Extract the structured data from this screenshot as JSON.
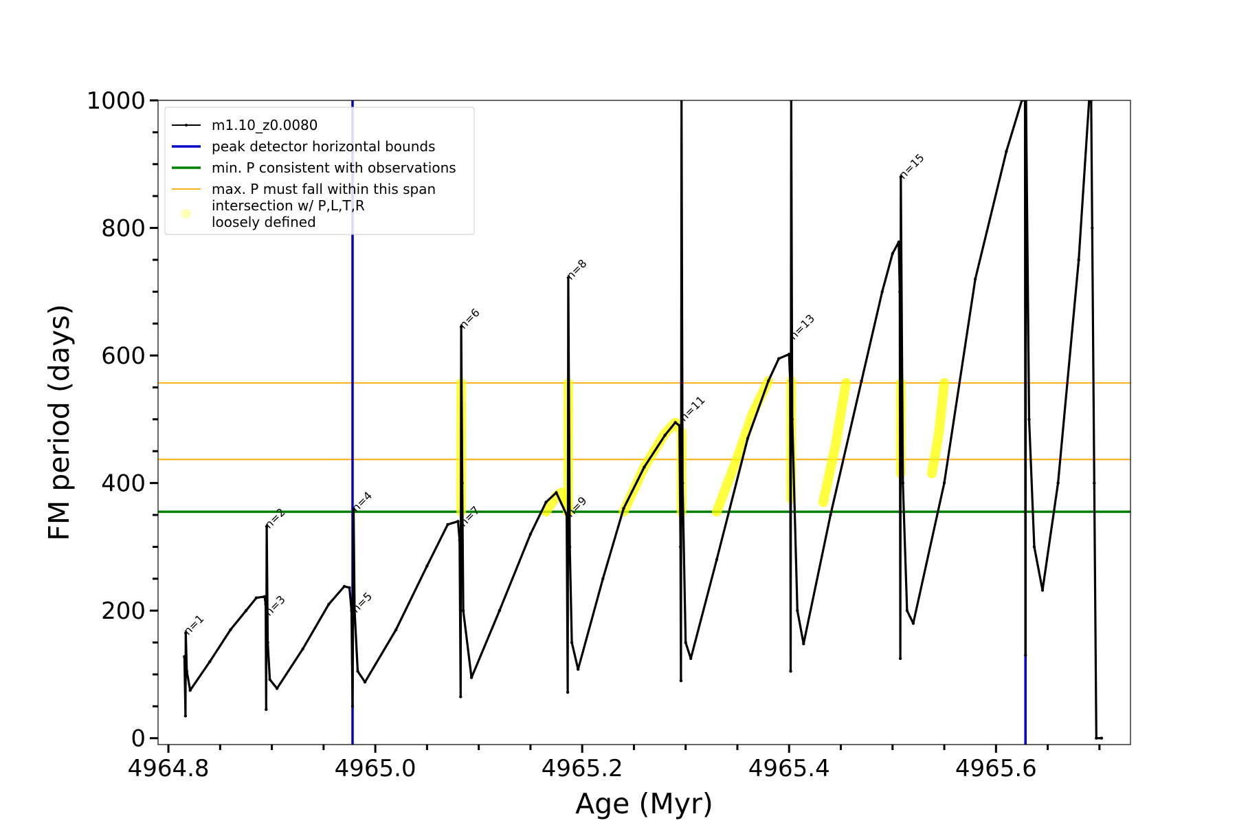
{
  "chart_data": {
    "type": "line",
    "xlabel": "Age (Myr)",
    "ylabel": "FM period (days)",
    "xlim": [
      4964.79,
      4965.73
    ],
    "ylim": [
      -10,
      1000
    ],
    "x_ticks": [
      4964.8,
      4965.0,
      4965.2,
      4965.4,
      4965.6
    ],
    "x_tick_labels": [
      "4964.8",
      "4965.0",
      "4965.2",
      "4965.4",
      "4965.6"
    ],
    "x_minor_step": 0.05,
    "y_ticks": [
      0,
      200,
      400,
      600,
      800,
      1000
    ],
    "y_tick_labels": [
      "0",
      "200",
      "400",
      "600",
      "800",
      "1000"
    ],
    "y_minor_step": 50,
    "series_name": "m1.10_z0.0080",
    "track_anchors": [
      [
        4964.8155,
        128
      ],
      [
        4964.8165,
        35
      ],
      [
        4964.8168,
        165
      ],
      [
        4964.8178,
        105
      ],
      [
        4964.821,
        75
      ],
      [
        4964.84,
        120
      ],
      [
        4964.86,
        170
      ],
      [
        4964.875,
        200
      ],
      [
        4964.885,
        220
      ],
      [
        4964.893,
        222
      ],
      [
        4964.894,
        210
      ],
      [
        4964.8945,
        45
      ],
      [
        4964.895,
        332
      ],
      [
        4964.896,
        150
      ],
      [
        4964.898,
        92
      ],
      [
        4964.905,
        78
      ],
      [
        4964.93,
        140
      ],
      [
        4964.955,
        210
      ],
      [
        4964.97,
        238
      ],
      [
        4964.975,
        236
      ],
      [
        4964.977,
        200
      ],
      [
        4964.978,
        50
      ],
      [
        4964.979,
        358
      ],
      [
        4964.98,
        200
      ],
      [
        4964.983,
        105
      ],
      [
        4964.99,
        88
      ],
      [
        4965.02,
        170
      ],
      [
        4965.05,
        270
      ],
      [
        4965.07,
        335
      ],
      [
        4965.08,
        340
      ],
      [
        4965.0815,
        310
      ],
      [
        4965.0825,
        65
      ],
      [
        4965.083,
        645
      ],
      [
        4965.084,
        400
      ],
      [
        4965.085,
        200
      ],
      [
        4965.093,
        95
      ],
      [
        4965.12,
        200
      ],
      [
        4965.15,
        320
      ],
      [
        4965.165,
        370
      ],
      [
        4965.175,
        385
      ],
      [
        4965.185,
        350
      ],
      [
        4965.186,
        72
      ],
      [
        4965.1865,
        722
      ],
      [
        4965.188,
        300
      ],
      [
        4965.19,
        150
      ],
      [
        4965.196,
        108
      ],
      [
        4965.22,
        250
      ],
      [
        4965.24,
        360
      ],
      [
        4965.26,
        425
      ],
      [
        4965.28,
        475
      ],
      [
        4965.29,
        495
      ],
      [
        4965.294,
        490
      ],
      [
        4965.295,
        300
      ],
      [
        4965.2955,
        90
      ],
      [
        4965.296,
        1000
      ],
      [
        4965.297,
        400
      ],
      [
        4965.3,
        150
      ],
      [
        4965.305,
        125
      ],
      [
        4965.33,
        280
      ],
      [
        4965.36,
        470
      ],
      [
        4965.38,
        560
      ],
      [
        4965.39,
        595
      ],
      [
        4965.4,
        602
      ],
      [
        4965.401,
        560
      ],
      [
        4965.4015,
        105
      ],
      [
        4965.402,
        1000
      ],
      [
        4965.403,
        500
      ],
      [
        4965.408,
        200
      ],
      [
        4965.414,
        148
      ],
      [
        4965.44,
        350
      ],
      [
        4965.47,
        560
      ],
      [
        4965.49,
        700
      ],
      [
        4965.5,
        760
      ],
      [
        4965.506,
        778
      ],
      [
        4965.507,
        700
      ],
      [
        4965.5075,
        125
      ],
      [
        4965.508,
        880
      ],
      [
        4965.51,
        400
      ],
      [
        4965.514,
        200
      ],
      [
        4965.52,
        180
      ],
      [
        4965.55,
        400
      ],
      [
        4965.58,
        720
      ],
      [
        4965.61,
        920
      ],
      [
        4965.625,
        1000
      ],
      [
        4965.628,
        1010
      ],
      [
        4965.6285,
        130
      ],
      [
        4965.629,
        1000
      ],
      [
        4965.632,
        500
      ],
      [
        4965.637,
        300
      ],
      [
        4965.645,
        232
      ],
      [
        4965.66,
        400
      ],
      [
        4965.68,
        750
      ],
      [
        4965.69,
        1000
      ],
      [
        4965.692,
        1010
      ],
      [
        4965.693,
        800
      ],
      [
        4965.695,
        400
      ],
      [
        4965.697,
        0
      ],
      [
        4965.702,
        0
      ]
    ],
    "peaks": [
      {
        "label": "n=1",
        "x": 4964.8165,
        "y": 165
      },
      {
        "label": "n=2",
        "x": 4964.895,
        "y": 332
      },
      {
        "label": "n=3",
        "x": 4964.895,
        "y": 195
      },
      {
        "label": "n=4",
        "x": 4964.979,
        "y": 358
      },
      {
        "label": "n=5",
        "x": 4964.979,
        "y": 200
      },
      {
        "label": "n=6",
        "x": 4965.083,
        "y": 645
      },
      {
        "label": "n=7",
        "x": 4965.083,
        "y": 335
      },
      {
        "label": "n=8",
        "x": 4965.1865,
        "y": 722
      },
      {
        "label": "n=9",
        "x": 4965.1865,
        "y": 350
      },
      {
        "label": "n=11",
        "x": 4965.296,
        "y": 500
      },
      {
        "label": "n=13",
        "x": 4965.402,
        "y": 628
      },
      {
        "label": "n=15",
        "x": 4965.508,
        "y": 880
      }
    ],
    "vertical_lines": [
      4964.978,
      4965.6285
    ],
    "min_period": 355,
    "max_period_span": [
      437,
      557
    ],
    "highlight_segments": [
      [
        [
          4965.083,
          355
        ],
        [
          4965.083,
          557
        ]
      ],
      [
        [
          4965.1865,
          355
        ],
        [
          4965.1865,
          557
        ]
      ],
      [
        [
          4965.165,
          355
        ],
        [
          4965.175,
          380
        ],
        [
          4965.18,
          385
        ],
        [
          4965.185,
          370
        ],
        [
          4965.186,
          355
        ]
      ],
      [
        [
          4965.24,
          355
        ],
        [
          4965.26,
          425
        ],
        [
          4965.28,
          478
        ],
        [
          4965.29,
          495
        ],
        [
          4965.296,
          480
        ],
        [
          4965.296,
          355
        ]
      ],
      [
        [
          4965.33,
          355
        ],
        [
          4965.35,
          440
        ],
        [
          4965.365,
          510
        ],
        [
          4965.38,
          560
        ]
      ],
      [
        [
          4965.402,
          375
        ],
        [
          4965.402,
          560
        ]
      ],
      [
        [
          4965.433,
          370
        ],
        [
          4965.445,
          460
        ],
        [
          4965.455,
          557
        ]
      ],
      [
        [
          4965.508,
          415
        ],
        [
          4965.508,
          557
        ]
      ],
      [
        [
          4965.538,
          415
        ],
        [
          4965.545,
          480
        ],
        [
          4965.55,
          557
        ]
      ]
    ],
    "legend": [
      {
        "label": "m1.10_z0.0080",
        "style": "dot-line",
        "color": "#000000"
      },
      {
        "label": "peak detector horizontal bounds",
        "style": "line",
        "color": "#0000cc"
      },
      {
        "label": "min. P consistent with observations",
        "style": "line",
        "color": "#008000"
      },
      {
        "label": "max. P must fall within this span",
        "style": "line",
        "color": "#ffa500"
      },
      {
        "label": "intersection w/ P,L,T,R",
        "label2": "loosely defined",
        "style": "marker",
        "color": "#ffff99"
      }
    ],
    "colors": {
      "track": "#000000",
      "bounds": "#0000cc",
      "min_p": "#008000",
      "max_p": "#ffa500",
      "highlight": "#ffff00"
    }
  }
}
